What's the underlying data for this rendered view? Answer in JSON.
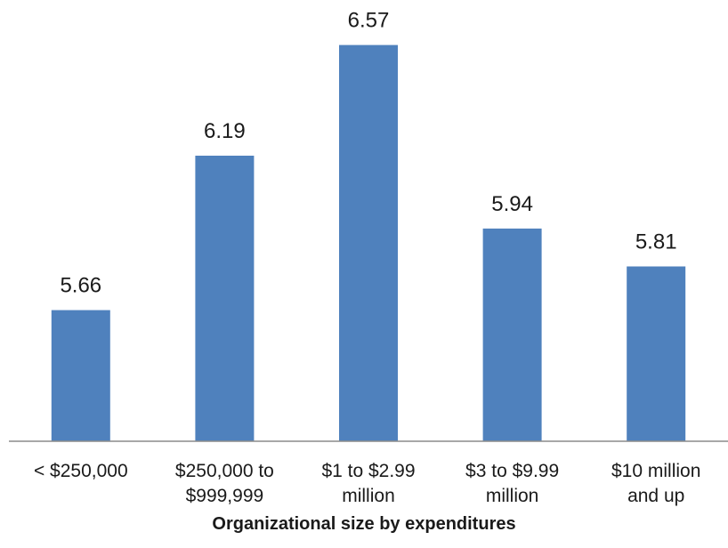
{
  "chart_data": {
    "type": "bar",
    "categories": [
      "< $250,000",
      "$250,000 to $999,999",
      "$1 to $2.99 million",
      "$3 to $9.99 million",
      "$10 million and up"
    ],
    "category_lines": [
      [
        "< $250,000"
      ],
      [
        "$250,000 to",
        "$999,999"
      ],
      [
        "$1 to $2.99",
        "million"
      ],
      [
        "$3 to $9.99",
        "million"
      ],
      [
        "$10 million",
        "and up"
      ]
    ],
    "values": [
      5.66,
      6.19,
      6.57,
      5.94,
      5.81
    ],
    "data_labels": [
      "5.66",
      "6.19",
      "6.57",
      "5.94",
      "5.81"
    ],
    "title": "",
    "xlabel": "Organizational size by expenditures",
    "ylabel": "",
    "bar_color": "#4f81bd",
    "grid": false,
    "legend": "none"
  }
}
